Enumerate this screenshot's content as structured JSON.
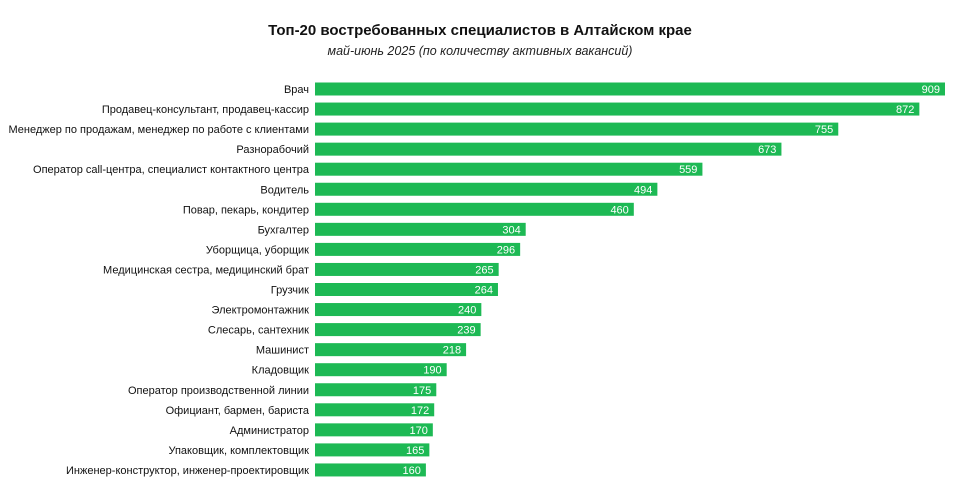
{
  "title": "Топ-20 востребованных специалистов в Алтайском крае",
  "subtitle": "май-июнь 2025 (по количеству активных вакансий)",
  "colors": {
    "bar": "#1db954",
    "value_text": "#ffffff",
    "label_text": "#111111"
  },
  "chart_data": {
    "type": "bar",
    "orientation": "horizontal",
    "title": "Топ-20 востребованных специалистов в Алтайском крае",
    "subtitle": "май-июнь 2025 (по количеству активных вакансий)",
    "xlabel": "",
    "ylabel": "",
    "grid": false,
    "legend": "none",
    "xlim": [
      0,
      909
    ],
    "categories": [
      "Врач",
      "Продавец-консультант, продавец-кассир",
      "Менеджер по продажам, менеджер по работе с клиентами",
      "Разнорабочий",
      "Оператор call-центра, специалист контактного центра",
      "Водитель",
      "Повар, пекарь, кондитер",
      "Бухгалтер",
      "Уборщица, уборщик",
      "Медицинская сестра, медицинский брат",
      "Грузчик",
      "Электромонтажник",
      "Слесарь, сантехник",
      "Машинист",
      "Кладовщик",
      "Оператор производственной линии",
      "Официант, бармен, бариста",
      "Администратор",
      "Упаковщик, комплектовщик",
      "Инженер-конструктор, инженер-проектировщик"
    ],
    "values": [
      909,
      872,
      755,
      673,
      559,
      494,
      460,
      304,
      296,
      265,
      264,
      240,
      239,
      218,
      190,
      175,
      172,
      170,
      165,
      160
    ]
  }
}
